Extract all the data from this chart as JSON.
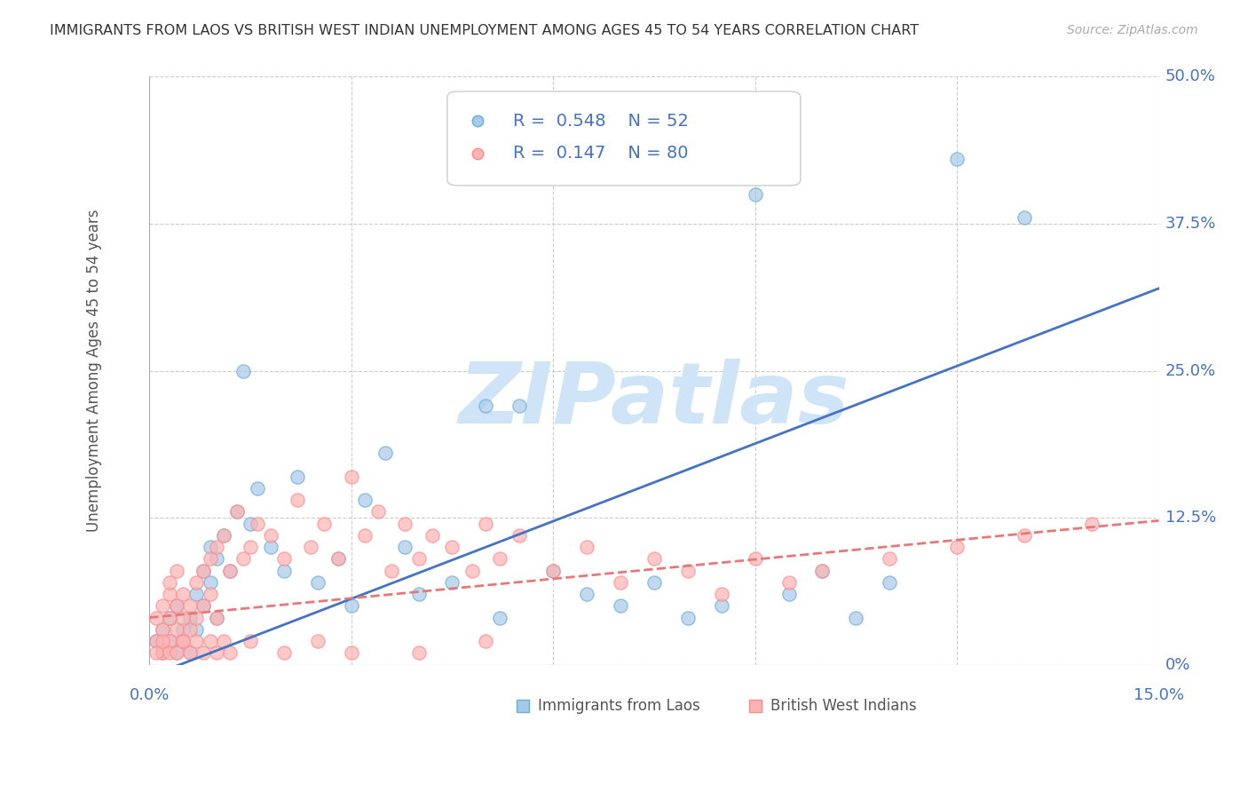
{
  "title": "IMMIGRANTS FROM LAOS VS BRITISH WEST INDIAN UNEMPLOYMENT AMONG AGES 45 TO 54 YEARS CORRELATION CHART",
  "source": "Source: ZipAtlas.com",
  "ylabel": "Unemployment Among Ages 45 to 54 years",
  "xlim": [
    0.0,
    0.15
  ],
  "ylim": [
    0.0,
    0.5
  ],
  "yticks": [
    0.0,
    0.125,
    0.25,
    0.375,
    0.5
  ],
  "ytick_labels": [
    "0%",
    "12.5%",
    "25.0%",
    "37.5%",
    "50.0%"
  ],
  "xtick_labels": [
    "0.0%",
    "15.0%"
  ],
  "legend_entries": [
    {
      "label": "Immigrants from Laos",
      "R": 0.548,
      "N": 52,
      "color": "#6baed6"
    },
    {
      "label": "British West Indians",
      "R": 0.147,
      "N": 80,
      "color": "#fc8d8d"
    }
  ],
  "background_color": "#ffffff",
  "grid_color": "#cccccc",
  "watermark": "ZIPatlas",
  "watermark_color": "#d0e4f7",
  "title_color": "#333333",
  "axis_label_color": "#4472c4",
  "laos_scatter_x": [
    0.001,
    0.002,
    0.002,
    0.003,
    0.003,
    0.004,
    0.004,
    0.005,
    0.005,
    0.006,
    0.006,
    0.007,
    0.007,
    0.008,
    0.008,
    0.009,
    0.009,
    0.01,
    0.01,
    0.011,
    0.012,
    0.013,
    0.014,
    0.015,
    0.016,
    0.018,
    0.02,
    0.022,
    0.025,
    0.028,
    0.03,
    0.032,
    0.035,
    0.038,
    0.04,
    0.045,
    0.05,
    0.052,
    0.055,
    0.06,
    0.065,
    0.07,
    0.075,
    0.08,
    0.085,
    0.09,
    0.095,
    0.1,
    0.105,
    0.11,
    0.12,
    0.13
  ],
  "laos_scatter_y": [
    0.02,
    0.03,
    0.01,
    0.04,
    0.02,
    0.05,
    0.01,
    0.03,
    0.02,
    0.04,
    0.01,
    0.06,
    0.03,
    0.08,
    0.05,
    0.1,
    0.07,
    0.09,
    0.04,
    0.11,
    0.08,
    0.13,
    0.25,
    0.12,
    0.15,
    0.1,
    0.08,
    0.16,
    0.07,
    0.09,
    0.05,
    0.14,
    0.18,
    0.1,
    0.06,
    0.07,
    0.22,
    0.04,
    0.22,
    0.08,
    0.06,
    0.05,
    0.07,
    0.04,
    0.05,
    0.4,
    0.06,
    0.08,
    0.04,
    0.07,
    0.43,
    0.38
  ],
  "bwi_scatter_x": [
    0.001,
    0.001,
    0.002,
    0.002,
    0.002,
    0.003,
    0.003,
    0.003,
    0.003,
    0.004,
    0.004,
    0.004,
    0.005,
    0.005,
    0.005,
    0.006,
    0.006,
    0.007,
    0.007,
    0.008,
    0.008,
    0.009,
    0.009,
    0.01,
    0.01,
    0.011,
    0.012,
    0.013,
    0.014,
    0.015,
    0.016,
    0.018,
    0.02,
    0.022,
    0.024,
    0.026,
    0.028,
    0.03,
    0.032,
    0.034,
    0.036,
    0.038,
    0.04,
    0.042,
    0.045,
    0.048,
    0.05,
    0.052,
    0.055,
    0.06,
    0.065,
    0.07,
    0.075,
    0.08,
    0.085,
    0.09,
    0.095,
    0.1,
    0.11,
    0.12,
    0.13,
    0.14,
    0.001,
    0.002,
    0.003,
    0.004,
    0.005,
    0.006,
    0.007,
    0.008,
    0.009,
    0.01,
    0.011,
    0.012,
    0.015,
    0.02,
    0.025,
    0.03,
    0.04,
    0.05
  ],
  "bwi_scatter_y": [
    0.02,
    0.04,
    0.03,
    0.05,
    0.01,
    0.06,
    0.04,
    0.02,
    0.07,
    0.05,
    0.03,
    0.08,
    0.04,
    0.06,
    0.02,
    0.05,
    0.03,
    0.07,
    0.04,
    0.08,
    0.05,
    0.09,
    0.06,
    0.1,
    0.04,
    0.11,
    0.08,
    0.13,
    0.09,
    0.1,
    0.12,
    0.11,
    0.09,
    0.14,
    0.1,
    0.12,
    0.09,
    0.16,
    0.11,
    0.13,
    0.08,
    0.12,
    0.09,
    0.11,
    0.1,
    0.08,
    0.12,
    0.09,
    0.11,
    0.08,
    0.1,
    0.07,
    0.09,
    0.08,
    0.06,
    0.09,
    0.07,
    0.08,
    0.09,
    0.1,
    0.11,
    0.12,
    0.01,
    0.02,
    0.01,
    0.01,
    0.02,
    0.01,
    0.02,
    0.01,
    0.02,
    0.01,
    0.02,
    0.01,
    0.02,
    0.01,
    0.02,
    0.01,
    0.01,
    0.02
  ],
  "laos_line_x": [
    0.0,
    0.15
  ],
  "laos_line_y_intercept": -0.01,
  "laos_line_slope": 2.2,
  "bwi_line_x": [
    0.0,
    0.15
  ],
  "bwi_line_y_intercept": 0.04,
  "bwi_line_slope": 0.55
}
